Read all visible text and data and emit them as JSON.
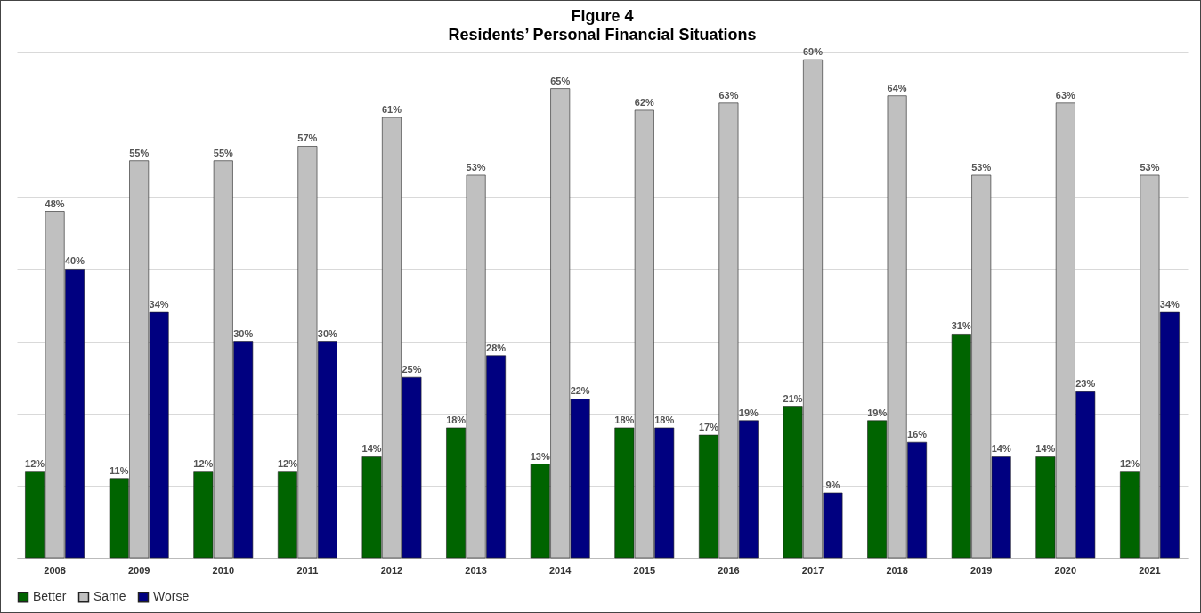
{
  "chart_data": {
    "type": "bar",
    "title": "Figure 4",
    "subtitle": "Residents’ Personal Financial Situations",
    "categories": [
      "2008",
      "2009",
      "2010",
      "2011",
      "2012",
      "2013",
      "2014",
      "2015",
      "2016",
      "2017",
      "2018",
      "2019",
      "2020",
      "2021"
    ],
    "series": [
      {
        "name": "Better",
        "color": "#006400",
        "values": [
          12,
          11,
          12,
          12,
          14,
          18,
          13,
          18,
          17,
          21,
          19,
          31,
          14,
          12
        ],
        "value_labels": [
          "12%",
          "11%",
          "12%",
          "12%",
          "14%",
          "18%",
          "13%",
          "18%",
          "17%",
          "21%",
          "19%",
          "31%",
          "14%",
          "12%"
        ]
      },
      {
        "name": "Same",
        "color": "#c0c0c0",
        "values": [
          48,
          55,
          55,
          57,
          61,
          53,
          65,
          62,
          63,
          69,
          64,
          53,
          63,
          53
        ],
        "value_labels": [
          "48%",
          "55%",
          "55%",
          "57%",
          "61%",
          "53%",
          "65%",
          "62%",
          "63%",
          "69%",
          "64%",
          "53%",
          "63%",
          "53%"
        ]
      },
      {
        "name": "Worse",
        "color": "#000080",
        "values": [
          40,
          34,
          30,
          30,
          25,
          28,
          22,
          18,
          19,
          9,
          16,
          14,
          23,
          34
        ],
        "value_labels": [
          "40%",
          "34%",
          "30%",
          "30%",
          "25%",
          "28%",
          "22%",
          "18%",
          "19%",
          "9%",
          "16%",
          "14%",
          "23%",
          "34%"
        ]
      }
    ],
    "ylim": [
      0,
      70
    ],
    "yticks": [
      {
        "value": 0,
        "label": null
      },
      {
        "value": 10,
        "label": null
      },
      {
        "value": 20,
        "label": null
      },
      {
        "value": 30,
        "label": null
      },
      {
        "value": 40,
        "label": null
      },
      {
        "value": 50,
        "label": null
      },
      {
        "value": 60,
        "label": null
      },
      {
        "value": 70,
        "label": null
      }
    ],
    "grid": "y",
    "legend": "bottom",
    "tick_labels": "x"
  }
}
